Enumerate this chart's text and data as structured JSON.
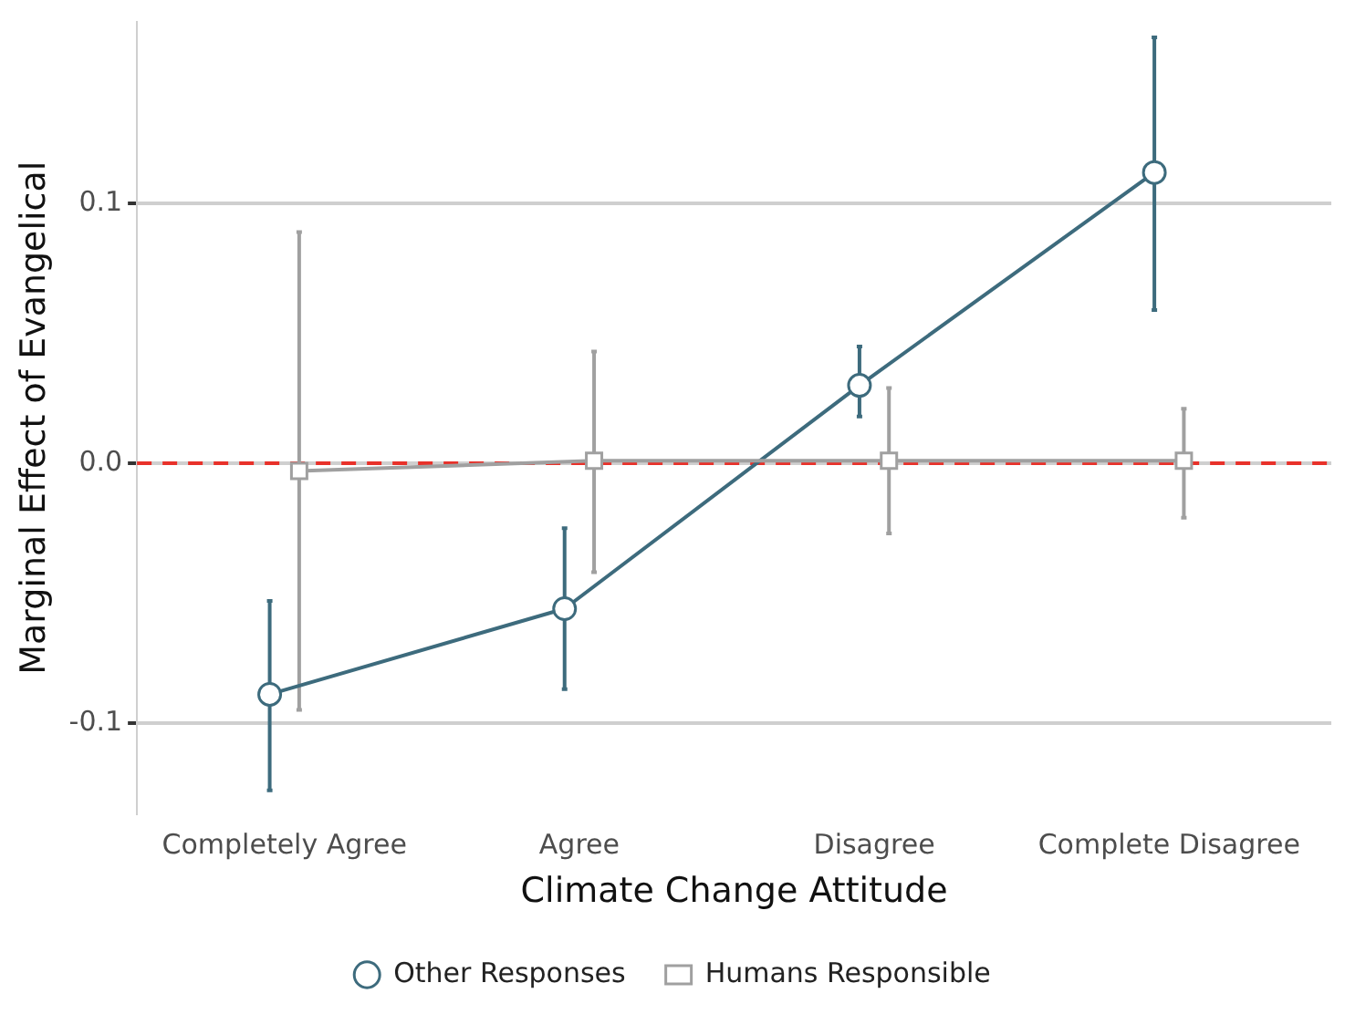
{
  "chart_data": {
    "type": "line",
    "xlabel": "Climate Change Attitude",
    "ylabel": "Marginal Effect of Evangelical",
    "categories": [
      "Completely Agree",
      "Agree",
      "Disagree",
      "Complete Disagree"
    ],
    "series": [
      {
        "name": "Other Responses",
        "color": "#3d6b7d",
        "marker": "circle",
        "values": [
          -0.089,
          -0.056,
          0.03,
          0.112
        ],
        "errors": [
          [
            -0.126,
            -0.053
          ],
          [
            -0.087,
            -0.025
          ],
          [
            0.018,
            0.045
          ],
          [
            0.059,
            0.164
          ]
        ]
      },
      {
        "name": "Humans Responsible",
        "color": "#a0a0a0",
        "marker": "square",
        "values": [
          -0.003,
          0.001,
          0.001,
          0.001
        ],
        "errors": [
          [
            -0.095,
            0.089
          ],
          [
            -0.042,
            0.043
          ],
          [
            -0.027,
            0.029
          ],
          [
            -0.021,
            0.021
          ]
        ]
      }
    ],
    "ylim": [
      -0.135,
      0.17
    ],
    "yticks": [
      {
        "value": -0.1,
        "label": "-0.1"
      },
      {
        "value": 0,
        "label": "0.0"
      },
      {
        "value": 0.1,
        "label": "0.1"
      }
    ],
    "grid": "y",
    "legend": "bottom",
    "ref_lines": [
      {
        "axis": "y",
        "value": 0,
        "color": "#e8312a",
        "line_style": "dashed"
      }
    ]
  }
}
